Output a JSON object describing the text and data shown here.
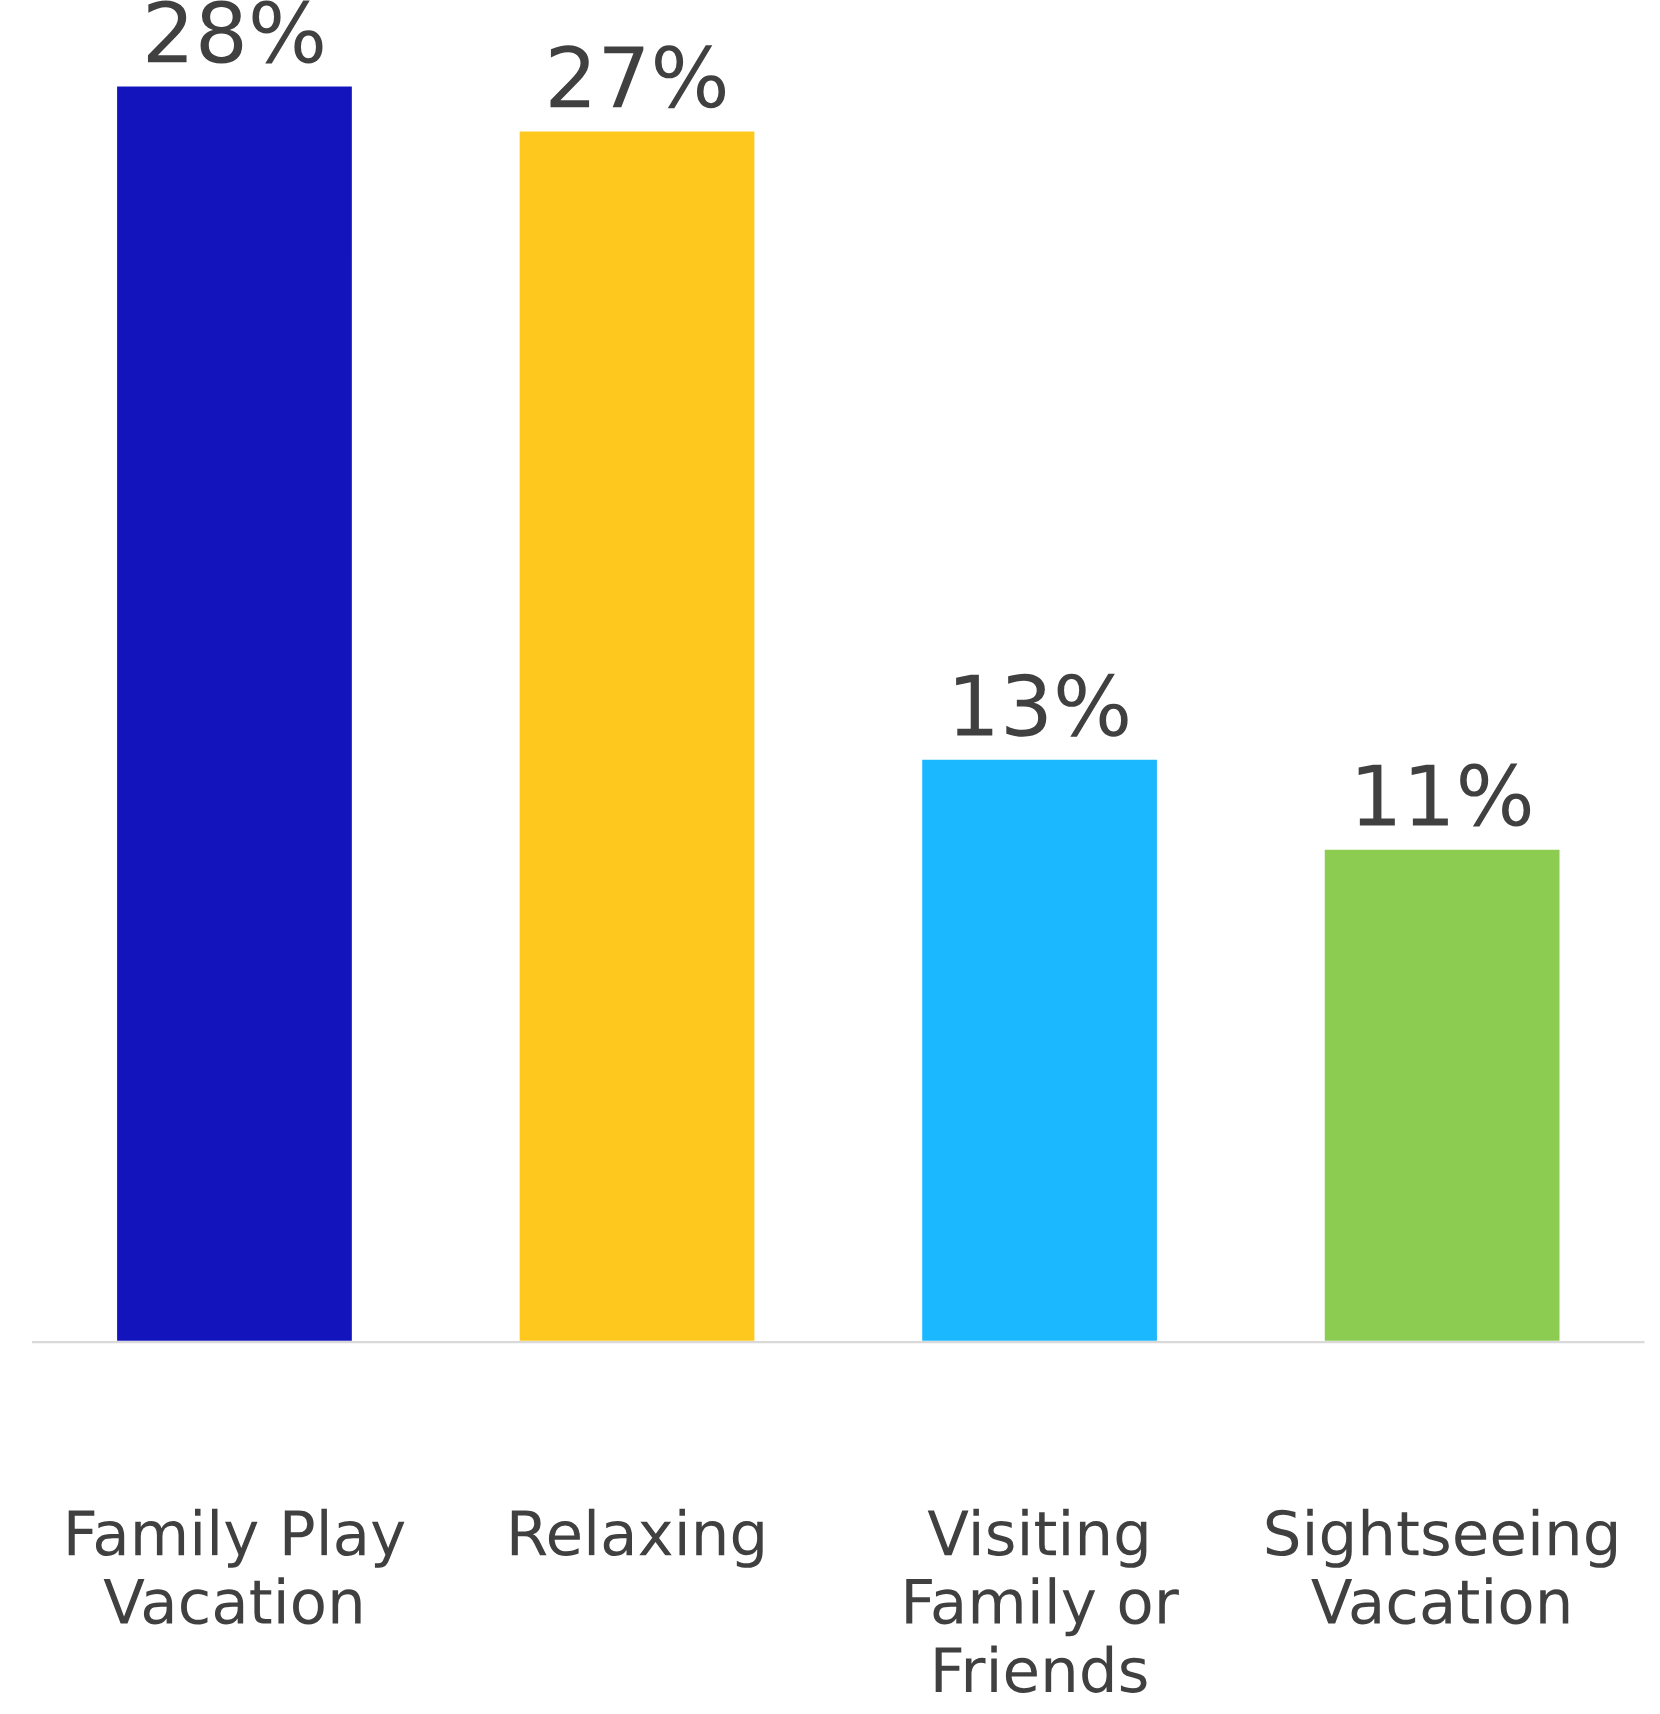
{
  "chart_data": {
    "type": "bar",
    "categories": [
      "Family Play\nVacation",
      "Relaxing",
      "Visiting\nFamily or\nFriends",
      "Sightseeing\nVacation"
    ],
    "values": [
      28,
      27,
      13,
      11
    ],
    "colors": [
      "#1414bc",
      "#ffc81e",
      "#1cb8ff",
      "#8ccc50"
    ],
    "value_labels": [
      "28%",
      "27%",
      "13%",
      "11%"
    ],
    "grid": false,
    "legend": false
  }
}
